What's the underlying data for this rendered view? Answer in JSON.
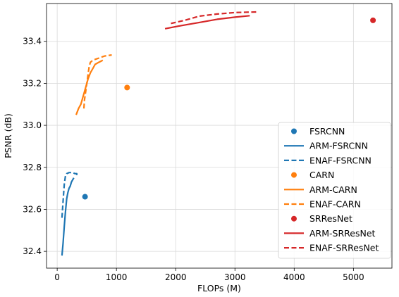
{
  "chart_data": {
    "type": "line",
    "xlabel": "FLOPs (M)",
    "ylabel": "PSNR (dB)",
    "xlim": [
      -180,
      5650
    ],
    "ylim": [
      32.32,
      33.58
    ],
    "xticks": [
      0,
      1000,
      2000,
      3000,
      4000,
      5000
    ],
    "yticks": [
      32.4,
      32.6,
      32.8,
      33.0,
      33.2,
      33.4
    ],
    "xtick_labels": [
      "0",
      "1000",
      "2000",
      "3000",
      "4000",
      "5000"
    ],
    "ytick_labels": [
      "32.4",
      "32.6",
      "32.8",
      "33.0",
      "33.2",
      "33.4"
    ],
    "grid": true,
    "legend_position": "lower-right",
    "series": [
      {
        "name": "FSRCNN",
        "kind": "marker",
        "color": "#1f77b4",
        "points": [
          [
            470,
            32.66
          ]
        ]
      },
      {
        "name": "ARM-FSRCNN",
        "kind": "solid",
        "color": "#1f77b4",
        "points": [
          [
            80,
            32.38
          ],
          [
            100,
            32.44
          ],
          [
            120,
            32.52
          ],
          [
            140,
            32.59
          ],
          [
            160,
            32.65
          ],
          [
            180,
            32.68
          ],
          [
            200,
            32.7
          ],
          [
            220,
            32.71
          ],
          [
            240,
            32.73
          ],
          [
            260,
            32.74
          ],
          [
            280,
            32.75
          ]
        ]
      },
      {
        "name": "ENAF-FSRCNN",
        "kind": "dashed",
        "color": "#1f77b4",
        "points": [
          [
            80,
            32.56
          ],
          [
            100,
            32.64
          ],
          [
            120,
            32.72
          ],
          [
            140,
            32.76
          ],
          [
            160,
            32.77
          ],
          [
            200,
            32.775
          ],
          [
            260,
            32.775
          ],
          [
            300,
            32.77
          ],
          [
            330,
            32.77
          ],
          [
            330,
            32.76
          ]
        ]
      },
      {
        "name": "CARN",
        "kind": "marker",
        "color": "#ff7f0e",
        "points": [
          [
            1180,
            33.18
          ]
        ]
      },
      {
        "name": "ARM-CARN",
        "kind": "solid",
        "color": "#ff7f0e",
        "points": [
          [
            320,
            33.05
          ],
          [
            360,
            33.08
          ],
          [
            400,
            33.1
          ],
          [
            440,
            33.14
          ],
          [
            480,
            33.18
          ],
          [
            520,
            33.22
          ],
          [
            560,
            33.25
          ],
          [
            600,
            33.27
          ],
          [
            640,
            33.29
          ],
          [
            700,
            33.3
          ],
          [
            770,
            33.31
          ]
        ]
      },
      {
        "name": "ENAF-CARN",
        "kind": "dashed",
        "color": "#ff7f0e",
        "points": [
          [
            450,
            33.08
          ],
          [
            460,
            33.12
          ],
          [
            480,
            33.16
          ],
          [
            500,
            33.2
          ],
          [
            520,
            33.24
          ],
          [
            540,
            33.28
          ],
          [
            560,
            33.3
          ],
          [
            600,
            33.31
          ],
          [
            700,
            33.32
          ],
          [
            800,
            33.33
          ],
          [
            920,
            33.335
          ]
        ]
      },
      {
        "name": "SRResNet",
        "kind": "marker",
        "color": "#d62728",
        "points": [
          [
            5330,
            33.5
          ]
        ]
      },
      {
        "name": "ARM-SRResNet",
        "kind": "solid",
        "color": "#d62728",
        "points": [
          [
            1820,
            33.46
          ],
          [
            2100,
            33.475
          ],
          [
            2400,
            33.49
          ],
          [
            2700,
            33.505
          ],
          [
            3000,
            33.515
          ],
          [
            3250,
            33.522
          ]
        ]
      },
      {
        "name": "ENAF-SRResNet",
        "kind": "dashed",
        "color": "#d62728",
        "points": [
          [
            1920,
            33.485
          ],
          [
            2150,
            33.5
          ],
          [
            2400,
            33.52
          ],
          [
            2700,
            33.53
          ],
          [
            3000,
            33.537
          ],
          [
            3400,
            33.54
          ]
        ]
      }
    ]
  }
}
